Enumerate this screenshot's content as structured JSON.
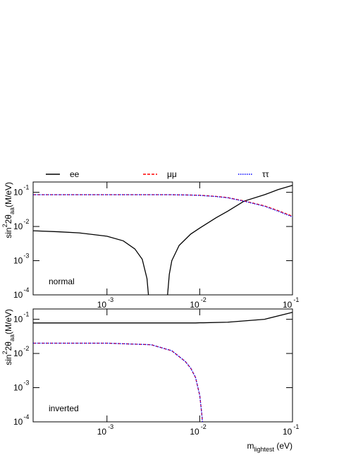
{
  "chart_data": [
    {
      "type": "line",
      "xscale": "log",
      "yscale": "log",
      "x": [
        0.00016,
        0.0003,
        0.0005,
        0.001,
        0.0015,
        0.002,
        0.0024,
        0.0027,
        0.0028,
        0.0035,
        0.0045,
        0.0047,
        0.005,
        0.006,
        0.008,
        0.01,
        0.015,
        0.02,
        0.03,
        0.05,
        0.07,
        0.1
      ],
      "series": [
        {
          "name": "ee",
          "color": "#000000",
          "dash": "solid",
          "values": [
            0.0075,
            0.007,
            0.0065,
            0.0052,
            0.0038,
            0.0022,
            0.0011,
            0.0003,
            0.0001,
            null,
            0.0001,
            0.0004,
            0.001,
            0.0028,
            0.006,
            0.009,
            0.018,
            0.028,
            0.055,
            0.085,
            0.12,
            0.16
          ]
        },
        {
          "name": "μμ",
          "color": "#ff0000",
          "dash": "dashed",
          "values": [
            0.085,
            0.085,
            0.085,
            0.085,
            0.085,
            0.085,
            0.085,
            0.085,
            0.085,
            0.085,
            0.085,
            0.085,
            0.085,
            0.084,
            0.083,
            0.082,
            0.076,
            0.07,
            0.056,
            0.04,
            0.029,
            0.02
          ]
        },
        {
          "name": "ττ",
          "color": "#0000ff",
          "dash": "dotted",
          "values": [
            0.085,
            0.085,
            0.085,
            0.085,
            0.085,
            0.085,
            0.085,
            0.085,
            0.085,
            0.085,
            0.085,
            0.085,
            0.085,
            0.084,
            0.083,
            0.081,
            0.075,
            0.069,
            0.055,
            0.039,
            0.028,
            0.019
          ]
        }
      ],
      "xlim": [
        0.00016,
        0.1
      ],
      "ylim": [
        0.0001,
        0.2
      ],
      "xticks": [
        {
          "value": 0.001,
          "label": "10",
          "exponent": "-3"
        },
        {
          "value": 0.01,
          "label": "10",
          "exponent": "-2"
        },
        {
          "value": 0.1,
          "label": "10",
          "exponent": "-1"
        }
      ],
      "yticks": [
        {
          "value": 0.0001,
          "label": "10",
          "exponent": "-4"
        },
        {
          "value": 0.001,
          "label": "10",
          "exponent": "-3"
        },
        {
          "value": 0.01,
          "label": "10",
          "exponent": "-2"
        },
        {
          "value": 0.1,
          "label": "10",
          "exponent": "-1"
        }
      ],
      "ylabel": [
        "sin",
        "2",
        "2θ",
        "aa",
        "(M/eV)"
      ],
      "annotation": "normal"
    },
    {
      "type": "line",
      "xscale": "log",
      "yscale": "log",
      "x": [
        0.00016,
        0.001,
        0.003,
        0.005,
        0.007,
        0.008,
        0.009,
        0.01,
        0.0105,
        0.0107,
        0.011,
        0.02,
        0.05,
        0.1
      ],
      "series": [
        {
          "color": "#000000",
          "dash": "solid",
          "values": [
            0.078,
            0.078,
            0.078,
            0.078,
            0.078,
            0.078,
            0.078,
            0.079,
            0.079,
            0.079,
            0.079,
            0.082,
            0.1,
            0.16
          ]
        },
        {
          "color": "#ff0000",
          "dash": "dashed",
          "values": [
            0.02,
            0.02,
            0.018,
            0.012,
            0.0058,
            0.0037,
            0.002,
            0.0006,
            0.00018,
            0.0001,
            null,
            null,
            null,
            null
          ]
        },
        {
          "color": "#0000ff",
          "dash": "dotted",
          "values": [
            0.02,
            0.02,
            0.018,
            0.012,
            0.0058,
            0.0037,
            0.002,
            0.0006,
            0.00018,
            0.0001,
            null,
            null,
            null,
            null
          ]
        }
      ],
      "xlim": [
        0.00016,
        0.1
      ],
      "ylim": [
        0.0001,
        0.2
      ],
      "xticks": [
        {
          "value": 0.001,
          "label": "10",
          "exponent": "-3"
        },
        {
          "value": 0.01,
          "label": "10",
          "exponent": "-2"
        },
        {
          "value": 0.1,
          "label": "10",
          "exponent": "-1"
        }
      ],
      "yticks": [
        {
          "value": 0.0001,
          "label": "10",
          "exponent": "-4"
        },
        {
          "value": 0.001,
          "label": "10",
          "exponent": "-3"
        },
        {
          "value": 0.01,
          "label": "10",
          "exponent": "-2"
        },
        {
          "value": 0.1,
          "label": "10",
          "exponent": "-1"
        }
      ],
      "ylabel": [
        "sin",
        "2",
        "2θ",
        "aa",
        "(M/eV)"
      ],
      "xlabel": [
        "m",
        "lightest",
        " (eV)"
      ],
      "annotation": "inverted"
    }
  ]
}
